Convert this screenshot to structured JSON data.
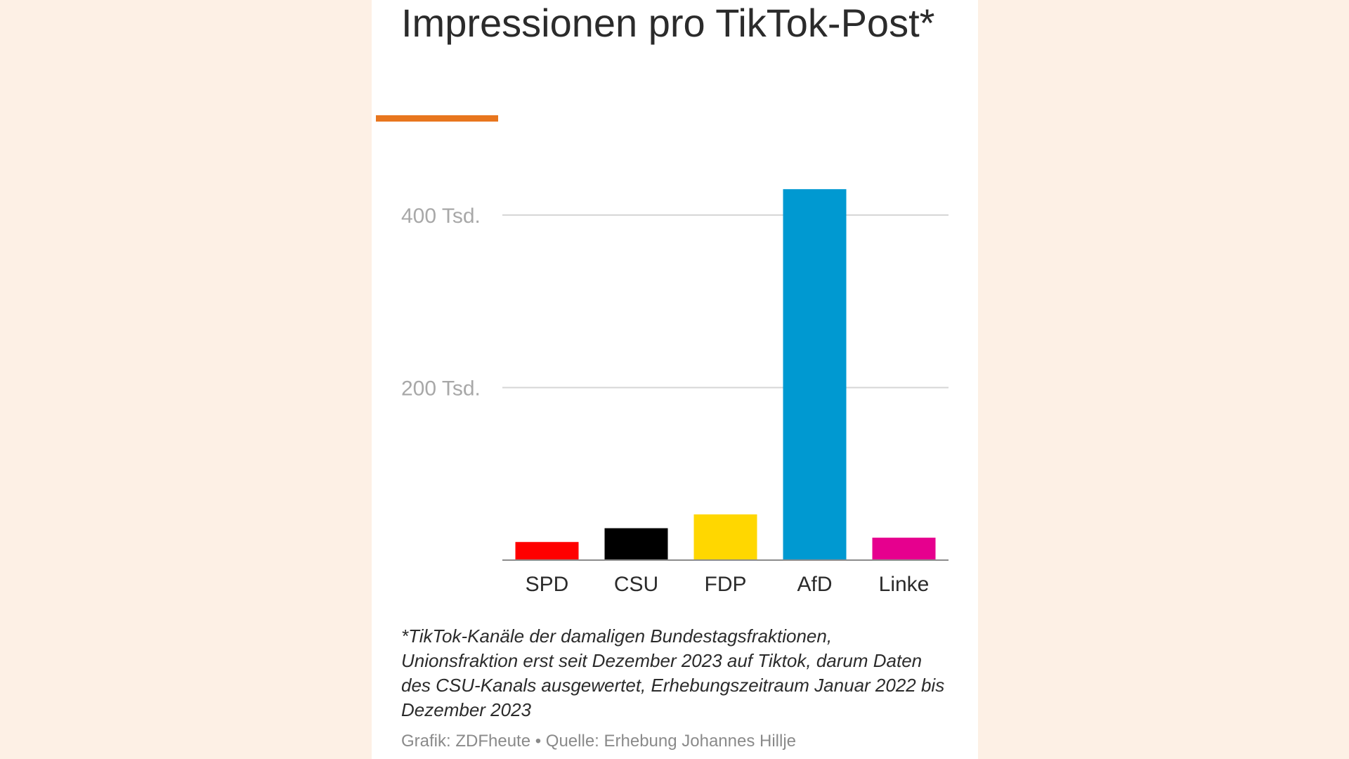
{
  "chart_data": {
    "type": "bar",
    "title": "Impressionen pro TikTok-Post*",
    "categories": [
      "SPD",
      "CSU",
      "FDP",
      "AfD",
      "Linke"
    ],
    "values": [
      21000,
      37000,
      53000,
      430000,
      26000
    ],
    "colors": [
      "#ff0000",
      "#000000",
      "#ffd700",
      "#0099d1",
      "#e6008e"
    ],
    "yticks": [
      {
        "value": 200000,
        "label": "200 Tsd."
      },
      {
        "value": 400000,
        "label": "400 Tsd."
      }
    ],
    "ylim": [
      0,
      430000
    ],
    "grid": true,
    "footnote": "*TikTok-Kanäle der damaligen Bundestagsfraktionen, Unionsfraktion erst seit Dezember 2023 auf Tiktok, darum Daten des CSU-Kanals ausgewertet, Erhebungszeitraum Januar 2022 bis Dezember 2023",
    "source": "Grafik: ZDFheute • Quelle: Erhebung Johannes Hillje"
  },
  "accent_color": "#e8761e"
}
